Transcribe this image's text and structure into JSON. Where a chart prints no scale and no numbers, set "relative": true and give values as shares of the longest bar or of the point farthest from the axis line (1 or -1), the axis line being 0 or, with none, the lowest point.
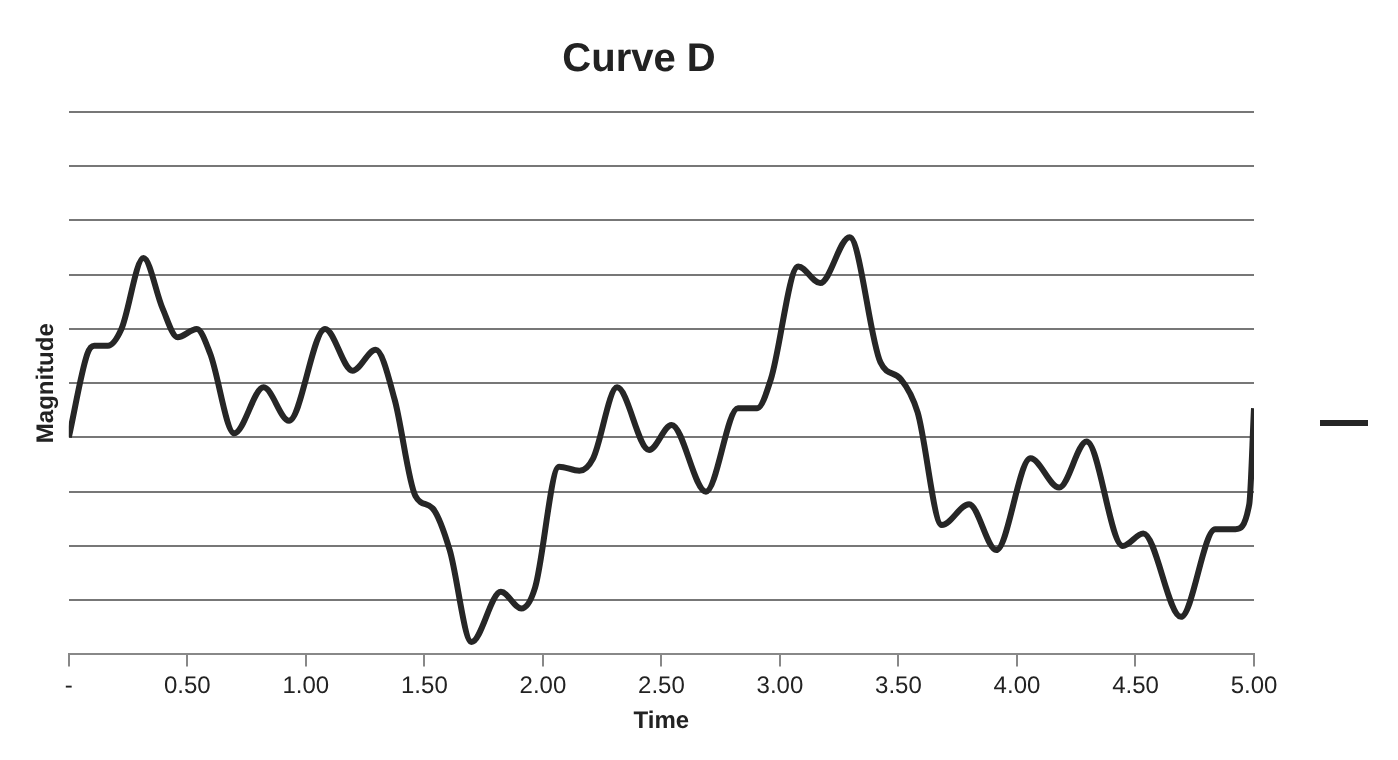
{
  "chart_data": {
    "type": "line",
    "title": "Curve D",
    "xlabel": "Time",
    "ylabel": "Magnitude",
    "relative": true,
    "grid": "y",
    "marker": "none",
    "line_style": "solid",
    "xlim": [
      0,
      5
    ],
    "xticks": [
      {
        "value": 0,
        "label": "-"
      },
      {
        "value": 0.5,
        "label": "0.50"
      },
      {
        "value": 1,
        "label": "1.00"
      },
      {
        "value": 1.5,
        "label": "1.50"
      },
      {
        "value": 2,
        "label": "2.00"
      },
      {
        "value": 2.5,
        "label": "2.50"
      },
      {
        "value": 3,
        "label": "3.00"
      },
      {
        "value": 3.5,
        "label": "3.50"
      },
      {
        "value": 4,
        "label": "4.00"
      },
      {
        "value": 4.5,
        "label": "4.50"
      },
      {
        "value": 5,
        "label": "5.00"
      }
    ],
    "series": [
      {
        "color": "#262626",
        "x": [
          0,
          0.078,
          0.107,
          0.165,
          0.222,
          0.315,
          0.395,
          0.459,
          0.54,
          0.597,
          0.698,
          0.822,
          0.929,
          1.081,
          1.197,
          1.295,
          1.375,
          1.462,
          1.535,
          1.607,
          1.699,
          1.823,
          1.909,
          1.967,
          2.068,
          2.154,
          2.212,
          2.313,
          2.448,
          2.543,
          2.688,
          2.823,
          2.904,
          2.962,
          3.077,
          3.17,
          3.294,
          3.424,
          3.51,
          3.581,
          3.683,
          3.798,
          3.913,
          4.057,
          4.178,
          4.294,
          4.446,
          4.533,
          4.692,
          4.836,
          4.922,
          4.98,
          5.0
        ],
        "values": [
          0.52,
          0.72,
          0.74,
          0.74,
          0.78,
          0.95,
          0.83,
          0.76,
          0.78,
          0.72,
          0.53,
          0.64,
          0.56,
          0.78,
          0.68,
          0.73,
          0.61,
          0.38,
          0.35,
          0.25,
          0.03,
          0.15,
          0.11,
          0.16,
          0.45,
          0.44,
          0.47,
          0.64,
          0.49,
          0.55,
          0.39,
          0.59,
          0.59,
          0.66,
          0.93,
          0.89,
          1,
          0.7,
          0.66,
          0.58,
          0.31,
          0.36,
          0.25,
          0.47,
          0.4,
          0.51,
          0.26,
          0.29,
          0.09,
          0.3,
          0.3,
          0.36,
          0.59
        ]
      }
    ]
  }
}
